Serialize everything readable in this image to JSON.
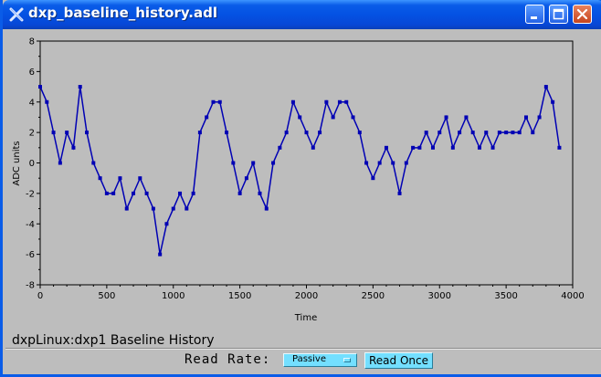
{
  "window": {
    "title": "dxp_baseline_history.adl"
  },
  "plot": {
    "caption": "dxpLinux:dxp1 Baseline History"
  },
  "controls": {
    "read_rate_label": "Read Rate:",
    "read_rate_value": "Passive",
    "read_once_label": "Read Once"
  },
  "colors": {
    "trace": "#0000b4",
    "plot_bg": "#bdbdbd",
    "button_bg": "#73dfff",
    "titlebar": "#0a5ce8"
  },
  "chart_data": {
    "type": "line",
    "xlabel": "Time",
    "ylabel": "ADC units",
    "xlim": [
      0,
      4000
    ],
    "ylim": [
      -8,
      8
    ],
    "x_ticks": [
      "0",
      "500",
      "1000",
      "1500",
      "2000",
      "2500",
      "3000",
      "3500",
      "4000"
    ],
    "y_ticks": [
      "8",
      "6",
      "4",
      "2",
      "0",
      "-2",
      "-4",
      "-6",
      "-8"
    ],
    "grid": false,
    "series": [
      {
        "x": [
          0,
          50,
          100,
          150,
          200,
          250,
          300,
          350,
          400,
          450,
          500,
          550,
          600,
          650,
          700,
          750,
          800,
          850,
          900,
          950,
          1000,
          1050,
          1100,
          1150,
          1200,
          1250,
          1300,
          1350,
          1400,
          1450,
          1500,
          1550,
          1600,
          1650,
          1700,
          1750,
          1800,
          1850,
          1900,
          1950,
          2000,
          2050,
          2100,
          2150,
          2200,
          2250,
          2300,
          2350,
          2400,
          2450,
          2500,
          2550,
          2600,
          2650,
          2700,
          2750,
          2800,
          2850,
          2900,
          2950,
          3000,
          3050,
          3100,
          3150,
          3200,
          3250,
          3300,
          3350,
          3400,
          3450,
          3500,
          3550,
          3600,
          3650,
          3700,
          3750,
          3800,
          3850,
          3900
        ],
        "values": [
          5,
          4,
          2,
          0,
          2,
          1,
          5,
          2,
          0,
          -1,
          -2,
          -2,
          -1,
          -3,
          -2,
          -1,
          -2,
          -3,
          -6,
          -4,
          -3,
          -2,
          -3,
          -2,
          2,
          3,
          4,
          4,
          2,
          0,
          -2,
          -1,
          0,
          -2,
          -3,
          0,
          1,
          2,
          4,
          3,
          2,
          1,
          2,
          4,
          3,
          4,
          4,
          3,
          2,
          0,
          -1,
          0,
          1,
          0,
          -2,
          0,
          1,
          1,
          2,
          1,
          2,
          3,
          1,
          2,
          3,
          2,
          1,
          2,
          1,
          2,
          2,
          2,
          2,
          3,
          2,
          3,
          5,
          4,
          1
        ]
      }
    ]
  }
}
